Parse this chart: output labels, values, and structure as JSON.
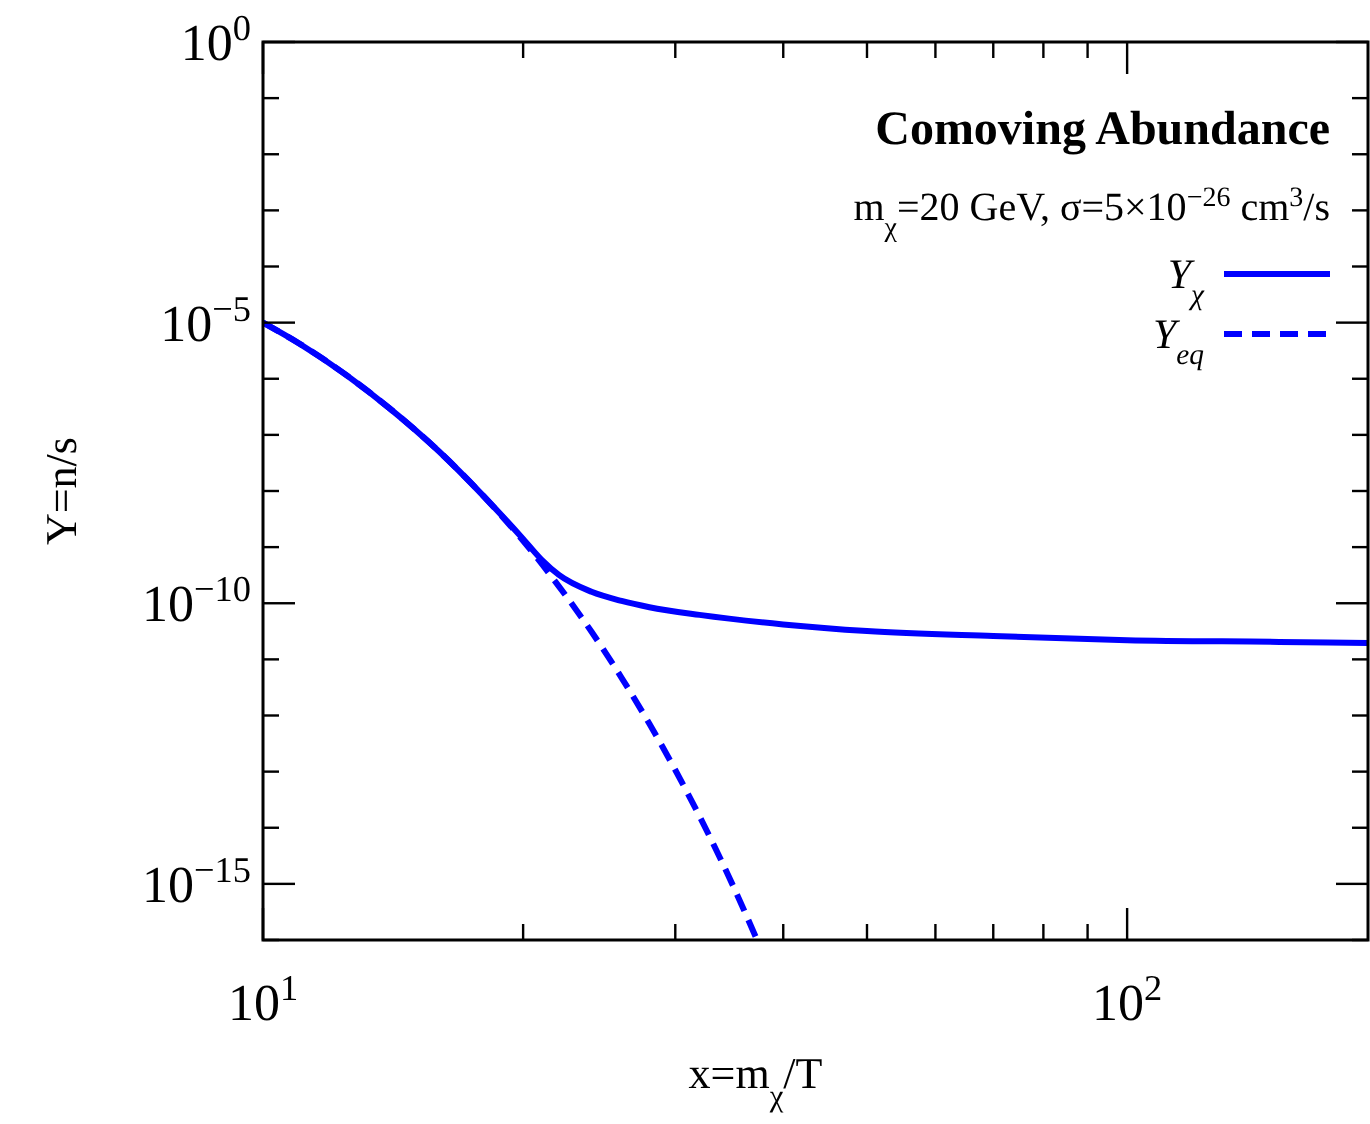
{
  "chart_data": {
    "type": "line",
    "title": "Comoving Abundance",
    "subtitle": "m$_{χ}$=20 GeV, σ=5×10$^{−26}$ cm$^{3}$/s",
    "xlabel": "x=m$_{χ}$/T",
    "ylabel": "Y=n/s",
    "log": "xy",
    "legend": "top right",
    "grid": false,
    "xlim": [
      10,
      190
    ],
    "ylim": [
      1e-16,
      1
    ],
    "xticks": [
      {
        "value": 10,
        "label": "10$^{1}$"
      },
      {
        "value": 20,
        "label": null
      },
      {
        "value": 30,
        "label": null
      },
      {
        "value": 40,
        "label": null
      },
      {
        "value": 50,
        "label": null
      },
      {
        "value": 60,
        "label": null
      },
      {
        "value": 70,
        "label": null
      },
      {
        "value": 80,
        "label": null
      },
      {
        "value": 90,
        "label": null
      },
      {
        "value": 100,
        "label": "10$^{2}$"
      }
    ],
    "yticks": [
      {
        "value": 1,
        "label": "10$^{0}$"
      },
      {
        "value": 0.1,
        "label": null
      },
      {
        "value": 0.01,
        "label": null
      },
      {
        "value": 0.001,
        "label": null
      },
      {
        "value": 0.0001,
        "label": null
      },
      {
        "value": 1e-05,
        "label": "10$^{−5}$"
      },
      {
        "value": 1e-06,
        "label": null
      },
      {
        "value": 1e-07,
        "label": null
      },
      {
        "value": 1e-08,
        "label": null
      },
      {
        "value": 1e-09,
        "label": null
      },
      {
        "value": 1e-10,
        "label": "10$^{−10}$"
      },
      {
        "value": 1e-11,
        "label": null
      },
      {
        "value": 1e-12,
        "label": null
      },
      {
        "value": 1e-13,
        "label": null
      },
      {
        "value": 1e-14,
        "label": null
      },
      {
        "value": 1e-15,
        "label": "10$^{−15}$"
      },
      {
        "value": 1e-16,
        "label": null
      }
    ],
    "series": [
      {
        "name": "Y$_{χ}$",
        "color": "#0000ff",
        "line_style": "solid",
        "x": [
          10,
          11,
          12.5,
          14,
          16,
          18,
          20,
          21,
          22,
          24,
          26,
          28,
          32,
          40,
          50,
          70,
          100,
          150,
          190
        ],
        "values": [
          1e-05,
          4.3e-06,
          1.15e-06,
          3e-07,
          5e-08,
          8.1e-09,
          1.4e-09,
          6e-10,
          3.2e-10,
          1.6e-10,
          1.1e-10,
          8.5e-11,
          6.2e-11,
          4.2e-11,
          3.2e-11,
          2.6e-11,
          2.2e-11,
          2.05e-11,
          1.95e-11
        ]
      },
      {
        "name": "Y$_{eq}$",
        "color": "#0000ff",
        "line_style": "dashed",
        "x": [
          10,
          11,
          12.5,
          14,
          16,
          18,
          20,
          22,
          24,
          26,
          28,
          30,
          32,
          34,
          36,
          37.3
        ],
        "values": [
          1e-05,
          4.3e-06,
          1.15e-06,
          3e-07,
          5e-08,
          8.1e-09,
          1.3e-09,
          2e-10,
          3.1e-11,
          4.7e-12,
          7.1e-13,
          1.07e-13,
          1.6e-14,
          2.4e-15,
          3.5e-16,
          1e-16
        ]
      }
    ]
  }
}
